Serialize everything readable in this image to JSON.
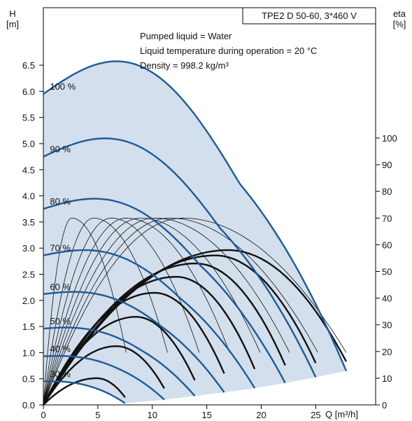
{
  "chart_data": {
    "type": "line",
    "title": "TPE2 D 50-60, 3*460 V",
    "info_lines": [
      "Pumped liquid = Water",
      "Liquid temperature during operation = 20 °C",
      "Density = 998.2 kg/m³"
    ],
    "left_axis": {
      "label_top": "H",
      "label_bottom": "[m]",
      "ticks": [
        "0.0",
        "0.5",
        "1.0",
        "1.5",
        "2.0",
        "2.5",
        "3.0",
        "3.5",
        "4.0",
        "4.5",
        "5.0",
        "5.5",
        "6.0",
        "6.5"
      ],
      "ylim": [
        0,
        7.6
      ]
    },
    "right_axis": {
      "label_top": "eta",
      "label_bottom": "[%]",
      "ticks": [
        "0",
        "10",
        "20",
        "30",
        "40",
        "50",
        "60",
        "70",
        "80",
        "90",
        "100"
      ],
      "ylim": [
        0,
        100
      ]
    },
    "x_axis": {
      "label": "Q [m³/h]",
      "ticks": [
        "0",
        "5",
        "10",
        "15",
        "20",
        "25"
      ],
      "xlim": [
        0,
        30.5
      ]
    },
    "colors": {
      "pump_curve": "#1e5a96",
      "operating_area": "#d3dfec",
      "efficiency": "#111111"
    },
    "speed_curves": [
      {
        "name": "100 %",
        "q_max": 27.8,
        "h0": 5.95,
        "a": 0.14,
        "q_peak": 9.0,
        "h_end": 0.65
      },
      {
        "name": "90 %",
        "q_max": 25.0,
        "h0": 4.75,
        "a": 0.105,
        "q_peak": 8.1,
        "h_end": 0.53
      },
      {
        "name": "80 %",
        "q_max": 22.2,
        "h0": 3.75,
        "a": 0.08,
        "q_peak": 7.2,
        "h_end": 0.42
      },
      {
        "name": "70 %",
        "q_max": 19.4,
        "h0": 2.86,
        "a": 0.06,
        "q_peak": 6.3,
        "h_end": 0.32
      },
      {
        "name": "60 %",
        "q_max": 16.6,
        "h0": 2.12,
        "a": 0.04,
        "q_peak": 5.4,
        "h_end": 0.24
      },
      {
        "name": "50 %",
        "q_max": 13.9,
        "h0": 1.46,
        "a": 0.03,
        "q_peak": 4.5,
        "h_end": 0.17
      },
      {
        "name": "40 %",
        "q_max": 11.1,
        "h0": 0.93,
        "a": 0.02,
        "q_peak": 3.6,
        "h_end": 0.1
      },
      {
        "name": "30 %",
        "q_max": 7.5,
        "h0": 0.45,
        "a": 0.01,
        "q_peak": 2.5,
        "h_end": 0.03
      }
    ],
    "efficiency_curves_thin": [
      {
        "q_max": 7.6,
        "eta_max": 70,
        "q_best": 2.6
      },
      {
        "q_max": 11.4,
        "eta_max": 70,
        "q_best": 4.6
      },
      {
        "q_max": 14.3,
        "eta_max": 70,
        "q_best": 6.2
      },
      {
        "q_max": 17.1,
        "eta_max": 70,
        "q_best": 7.6
      },
      {
        "q_max": 19.9,
        "eta_max": 70,
        "q_best": 8.9
      },
      {
        "q_max": 22.6,
        "eta_max": 70,
        "q_best": 10.2
      },
      {
        "q_max": 25.2,
        "eta_max": 70,
        "q_best": 11.6
      },
      {
        "q_max": 27.8,
        "eta_max": 70,
        "q_best": 12.8
      }
    ],
    "efficiency_curves_thick": [
      {
        "q_max": 7.5,
        "eta_max": 10,
        "q_best": 4.9
      },
      {
        "q_max": 11.1,
        "eta_max": 22,
        "q_best": 6.7
      },
      {
        "q_max": 13.9,
        "eta_max": 33,
        "q_best": 8.5
      },
      {
        "q_max": 16.6,
        "eta_max": 42,
        "q_best": 10.2
      },
      {
        "q_max": 19.4,
        "eta_max": 48,
        "q_best": 12.2
      },
      {
        "q_max": 22.2,
        "eta_max": 53,
        "q_best": 14.0
      },
      {
        "q_max": 25.0,
        "eta_max": 56,
        "q_best": 15.8
      },
      {
        "q_max": 27.8,
        "eta_max": 58,
        "q_best": 17.0
      }
    ]
  }
}
